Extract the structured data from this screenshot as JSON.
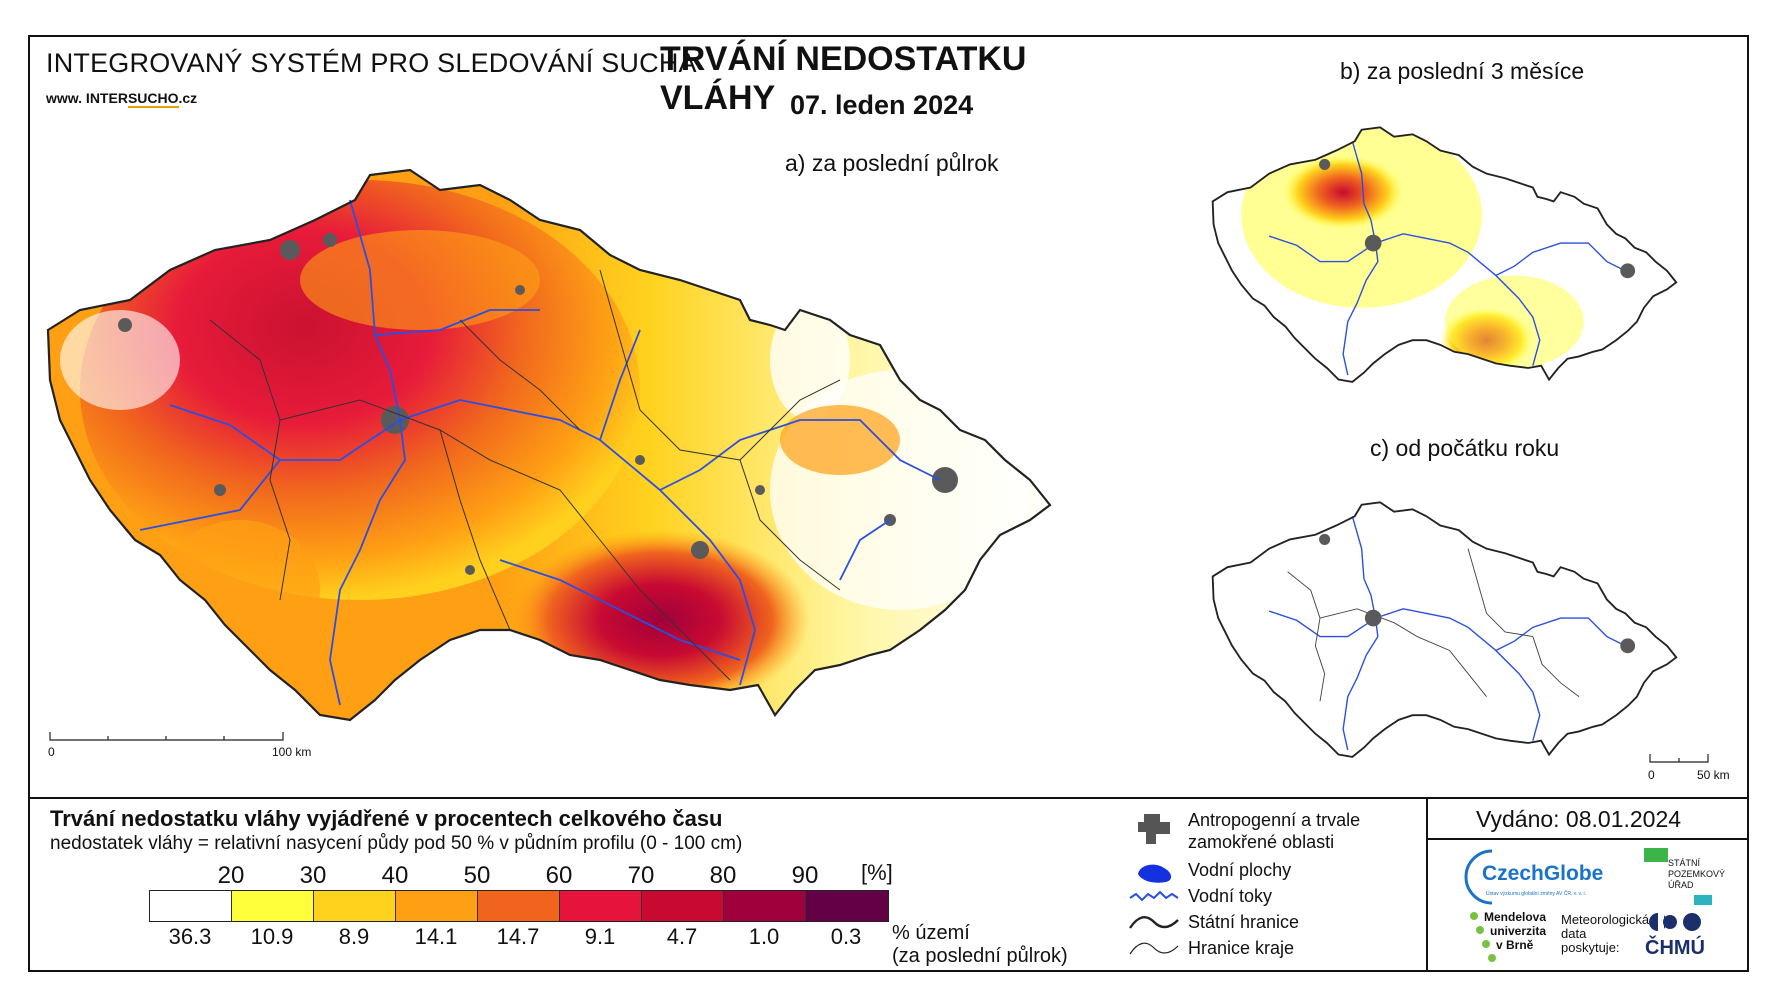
{
  "header": {
    "system_name": "INTEGROVANÝ SYSTÉM PRO SLEDOVÁNÍ SUCHA",
    "url_prefix": "www. INTER",
    "url_highlight": "SUCHO",
    "url_suffix": ".cz",
    "title": "TRVÁNÍ NEDOSTATKU VLÁHY",
    "date": "07. leden 2024"
  },
  "panels": {
    "a": "a) za poslední půlrok",
    "b": "b) za poslední 3 měsíce",
    "c": "c) od počátku roku"
  },
  "scalebars": {
    "main_zero": "0",
    "main_label": "100 km",
    "small_zero": "0",
    "small_label": "50 km"
  },
  "legend": {
    "title": "Trvání nedostatku vláhy vyjádřené v procentech celkového času",
    "subtitle": "nedostatek vláhy = relativní nasycení půdy pod 50 % v půdním profilu (0 - 100 cm)",
    "unit": "[%]",
    "ticks": [
      "20",
      "30",
      "40",
      "50",
      "60",
      "70",
      "80",
      "90"
    ],
    "colors": [
      "#ffffff",
      "#ffff3c",
      "#ffd21e",
      "#ffa014",
      "#f0641e",
      "#e6143c",
      "#c80a32",
      "#a0003c",
      "#640046"
    ],
    "area_values": [
      "36.3",
      "10.9",
      "8.9",
      "14.1",
      "14.7",
      "9.1",
      "4.7",
      "1.0",
      "0.3"
    ],
    "area_label_1": "% území",
    "area_label_2": "(za poslední půlrok)"
  },
  "symbols": {
    "anthropogenic_1": "Antropogenní a trvale",
    "anthropogenic_2": "zamokřené oblasti",
    "water_bodies": "Vodní plochy",
    "rivers": "Vodní toky",
    "state_border": "Státní hranice",
    "region_border": "Hranice kraje"
  },
  "issued": "Vydáno: 08.01.2024",
  "logos": {
    "czechglobe": "CzechGlobe",
    "czechglobe_sub": "Ústav výzkumu globální změny AV ČR, v. v. i.",
    "spu_1": "STÁTNÍ",
    "spu_2": "POZEMKOVÝ",
    "spu_3": "ÚŘAD",
    "mendel_1": "Mendelova",
    "mendel_2": "univerzita",
    "mendel_3": "v Brně",
    "meteo_1": "Meteorologická",
    "meteo_2": "data",
    "meteo_3": "poskytuje:",
    "chmu": "ČHMÚ"
  },
  "colors": {
    "river": "#2b4fe0",
    "urban": "#5a5a5a",
    "border": "#222222",
    "czechglobe_blue": "#1a73c9",
    "spu_green": "#3cb44a",
    "mendel_green": "#79c142"
  }
}
